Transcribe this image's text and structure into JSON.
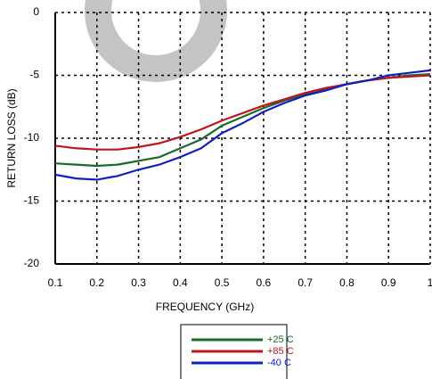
{
  "chart_data": {
    "type": "line",
    "x_label": "FREQUENCY (GHz)",
    "y_label": "RETURN LOSS (dB)",
    "x": [
      0.1,
      0.15,
      0.2,
      0.25,
      0.3,
      0.35,
      0.4,
      0.45,
      0.5,
      0.55,
      0.6,
      0.65,
      0.7,
      0.75,
      0.8,
      0.85,
      0.9,
      0.95,
      1.0
    ],
    "series": [
      {
        "name": "+25 C",
        "color": "#1a6b2a",
        "values": [
          -12.0,
          -12.1,
          -12.2,
          -12.1,
          -11.8,
          -11.5,
          -10.8,
          -10.1,
          -9.0,
          -8.3,
          -7.6,
          -7.0,
          -6.5,
          -6.1,
          -5.7,
          -5.4,
          -5.2,
          -5.0,
          -4.9
        ]
      },
      {
        "name": "+85 C",
        "color": "#c0161b",
        "values": [
          -10.6,
          -10.8,
          -10.9,
          -10.9,
          -10.7,
          -10.4,
          -9.9,
          -9.3,
          -8.6,
          -8.0,
          -7.4,
          -6.9,
          -6.4,
          -6.0,
          -5.7,
          -5.4,
          -5.2,
          -5.1,
          -5.0
        ]
      },
      {
        "name": "-40 C",
        "color": "#1020c0",
        "values": [
          -12.9,
          -13.2,
          -13.3,
          -13.0,
          -12.5,
          -12.1,
          -11.5,
          -10.8,
          -9.6,
          -8.8,
          -7.9,
          -7.2,
          -6.6,
          -6.2,
          -5.7,
          -5.4,
          -5.0,
          -4.8,
          -4.6
        ]
      }
    ],
    "xlim": [
      0.1,
      1
    ],
    "xticks": [
      0.1,
      0.2,
      0.3,
      0.4,
      0.5,
      0.6,
      0.7,
      0.8,
      0.9,
      1
    ],
    "ylim": [
      -20,
      0
    ],
    "yticks": [
      -20,
      -15,
      -10,
      -5,
      0
    ],
    "grid": true
  }
}
